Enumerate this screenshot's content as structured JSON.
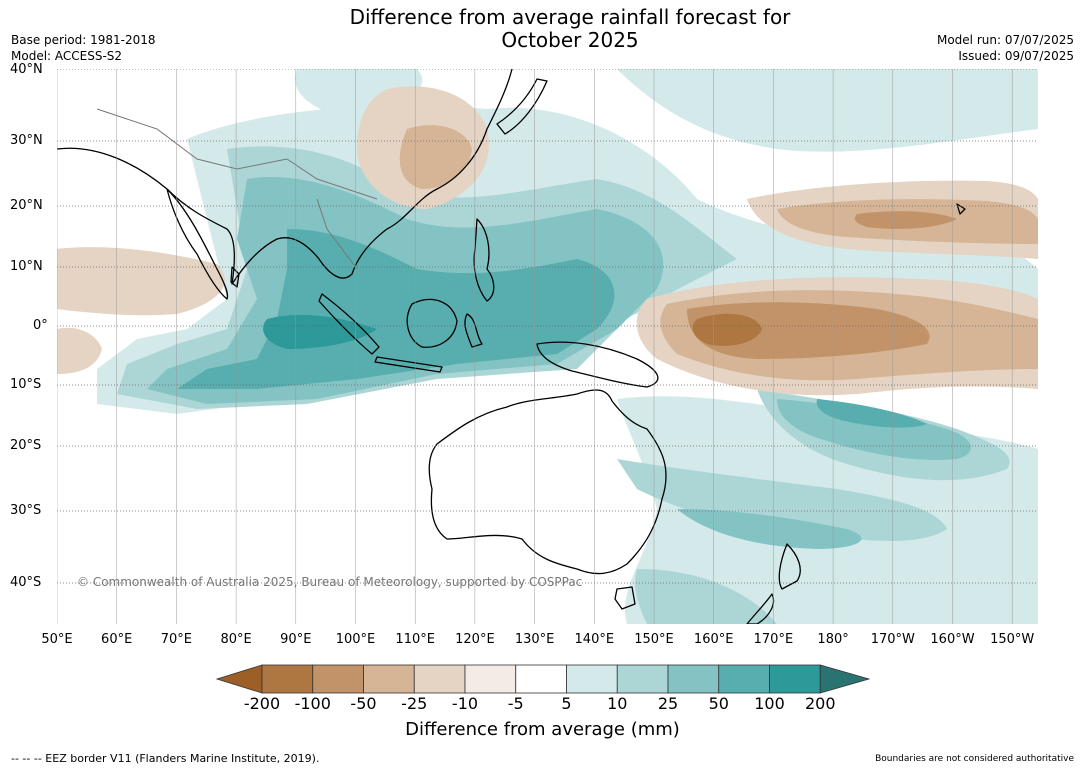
{
  "title": {
    "line1": "Difference from average rainfall forecast for",
    "line2": "October 2025"
  },
  "meta": {
    "base_period": "Base period: 1981-2018",
    "model": "Model: ACCESS-S2",
    "model_run": "Model run: 07/07/2025",
    "issued": "Issued: 09/07/2025"
  },
  "lat_labels": [
    "40°N",
    "30°N",
    "20°N",
    "10°N",
    "0°",
    "10°S",
    "20°S",
    "30°S",
    "40°S"
  ],
  "lon_labels": [
    "50°E",
    "60°E",
    "70°E",
    "80°E",
    "90°E",
    "100°E",
    "110°E",
    "120°E",
    "130°E",
    "140°E",
    "150°E",
    "160°E",
    "170°E",
    "180°",
    "170°W",
    "160°W",
    "150°W"
  ],
  "copyright": "© Commonwealth of Australia 2025, Bureau of Meteorology, supported by COSPPac",
  "colorbar": {
    "ticks": [
      "-200",
      "-100",
      "-50",
      "-25",
      "-10",
      "-5",
      "5",
      "10",
      "25",
      "50",
      "100",
      "200"
    ],
    "colors": [
      "#9c6027",
      "#ae7640",
      "#c29368",
      "#d5b595",
      "#e5d3c3",
      "#f3ece6",
      "#ffffff",
      "#d4eaea",
      "#acd6d6",
      "#83c3c3",
      "#58aeae",
      "#2e9999",
      "#2a7373"
    ],
    "title": "Difference from average (mm)"
  },
  "footer": {
    "eez": "--  --  -- EEZ border V11 (Flanders Marine Institute, 2019).",
    "disclaimer": "Boundaries are not considered authoritative"
  }
}
